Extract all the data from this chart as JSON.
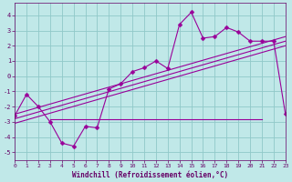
{
  "background_color": "#c0e8e8",
  "grid_color": "#90c8c8",
  "line_color": "#990099",
  "xlabel": "Windchill (Refroidissement éolien,°C)",
  "xlim": [
    0,
    23
  ],
  "ylim": [
    -5.5,
    4.8
  ],
  "yticks": [
    -5,
    -4,
    -3,
    -2,
    -1,
    0,
    1,
    2,
    3,
    4
  ],
  "xticks": [
    0,
    1,
    2,
    3,
    4,
    5,
    6,
    7,
    8,
    9,
    10,
    11,
    12,
    13,
    14,
    15,
    16,
    17,
    18,
    19,
    20,
    21,
    22,
    23
  ],
  "series1_x": [
    0,
    1,
    2,
    3,
    4,
    5,
    6,
    7,
    8,
    9,
    10,
    11,
    12,
    13,
    14,
    15,
    16,
    17,
    18,
    19,
    20,
    21,
    22,
    23
  ],
  "series1_y": [
    -2.6,
    -1.2,
    -2.0,
    -3.0,
    -4.4,
    -4.6,
    -3.3,
    -3.4,
    -0.85,
    -0.5,
    0.3,
    0.55,
    1.0,
    0.5,
    3.4,
    4.2,
    2.5,
    2.6,
    3.2,
    2.9,
    2.3,
    2.3,
    2.3,
    -2.5
  ],
  "series2_x": [
    0,
    23
  ],
  "series2_y": [
    -2.5,
    2.6
  ],
  "series3_x": [
    0,
    23
  ],
  "series3_y": [
    -2.8,
    2.3
  ],
  "series4_x": [
    0,
    23
  ],
  "series4_y": [
    -3.1,
    2.0
  ],
  "flat_line_x": [
    3,
    21
  ],
  "flat_line_y": [
    -2.85,
    -2.85
  ],
  "markersize": 2.5
}
